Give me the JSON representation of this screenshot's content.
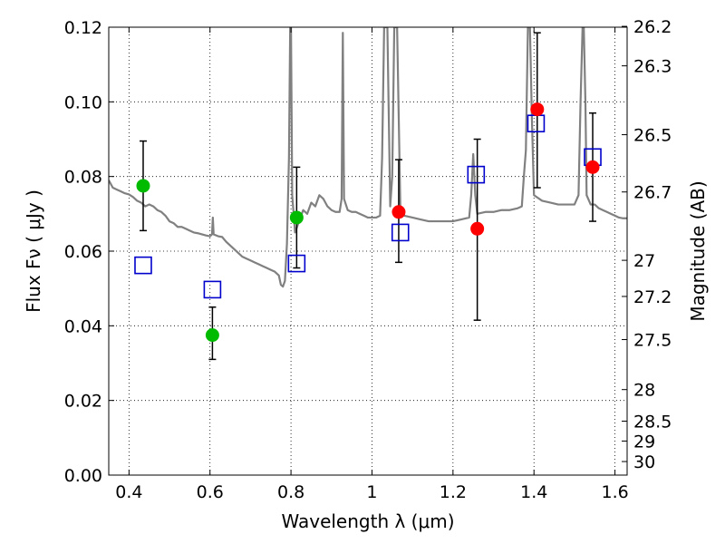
{
  "chart_data": {
    "type": "scatter",
    "xlabel": "Wavelength  λ (μm)",
    "ylabel": "Flux  Fν  ( μJy )",
    "ylabel2": "Magnitude (AB)",
    "xlim": [
      0.35,
      1.63
    ],
    "ylim": [
      0,
      0.12
    ],
    "grid": true,
    "x_ticks": [
      {
        "value": 0.4,
        "label": "0.4"
      },
      {
        "value": 0.6,
        "label": "0.6"
      },
      {
        "value": 0.8,
        "label": "0.8"
      },
      {
        "value": 1.0,
        "label": "1"
      },
      {
        "value": 1.2,
        "label": "1.2"
      },
      {
        "value": 1.4,
        "label": "1.4"
      },
      {
        "value": 1.6,
        "label": "1.6"
      }
    ],
    "y_ticks": [
      {
        "value": 0.0,
        "label": "0.00"
      },
      {
        "value": 0.02,
        "label": "0.02"
      },
      {
        "value": 0.04,
        "label": "0.04"
      },
      {
        "value": 0.06,
        "label": "0.06"
      },
      {
        "value": 0.08,
        "label": "0.08"
      },
      {
        "value": 0.1,
        "label": "0.10"
      },
      {
        "value": 0.12,
        "label": "0.12"
      }
    ],
    "mag_ticks": [
      {
        "value": 26.2,
        "label": "26.2"
      },
      {
        "value": 26.3,
        "label": "26.3"
      },
      {
        "value": 26.5,
        "label": "26.5"
      },
      {
        "value": 26.7,
        "label": "26.7"
      },
      {
        "value": 27.0,
        "label": "27"
      },
      {
        "value": 27.2,
        "label": "27.2"
      },
      {
        "value": 27.5,
        "label": "27.5"
      },
      {
        "value": 28.0,
        "label": "28"
      },
      {
        "value": 28.5,
        "label": "28.5"
      },
      {
        "value": 29.0,
        "label": "29"
      },
      {
        "value": 30.0,
        "label": "30"
      }
    ],
    "observed_green": [
      {
        "x": 0.435,
        "y": 0.0775,
        "yerr_low": 0.0655,
        "yerr_high": 0.0895
      },
      {
        "x": 0.606,
        "y": 0.0375,
        "yerr_low": 0.031,
        "yerr_high": 0.045
      },
      {
        "x": 0.814,
        "y": 0.069,
        "yerr_low": 0.0555,
        "yerr_high": 0.0825
      }
    ],
    "observed_red": [
      {
        "x": 1.066,
        "y": 0.0705,
        "yerr_low": 0.057,
        "yerr_high": 0.0845
      },
      {
        "x": 1.26,
        "y": 0.066,
        "yerr_low": 0.0415,
        "yerr_high": 0.09
      },
      {
        "x": 1.408,
        "y": 0.098,
        "yerr_low": 0.077,
        "yerr_high": 0.1185
      },
      {
        "x": 1.545,
        "y": 0.0825,
        "yerr_low": 0.068,
        "yerr_high": 0.097
      }
    ],
    "model_points": [
      {
        "x": 0.435,
        "y": 0.0562
      },
      {
        "x": 0.606,
        "y": 0.0497
      },
      {
        "x": 0.814,
        "y": 0.0567
      },
      {
        "x": 1.07,
        "y": 0.065
      },
      {
        "x": 1.257,
        "y": 0.0805
      },
      {
        "x": 1.405,
        "y": 0.0942
      },
      {
        "x": 1.545,
        "y": 0.0852
      }
    ],
    "model_spectrum": [
      [
        0.35,
        0.079
      ],
      [
        0.36,
        0.077
      ],
      [
        0.37,
        0.0765
      ],
      [
        0.38,
        0.076
      ],
      [
        0.39,
        0.0755
      ],
      [
        0.4,
        0.0752
      ],
      [
        0.41,
        0.0745
      ],
      [
        0.42,
        0.0735
      ],
      [
        0.43,
        0.073
      ],
      [
        0.44,
        0.072
      ],
      [
        0.45,
        0.0725
      ],
      [
        0.46,
        0.072
      ],
      [
        0.47,
        0.071
      ],
      [
        0.48,
        0.0705
      ],
      [
        0.49,
        0.0695
      ],
      [
        0.5,
        0.068
      ],
      [
        0.51,
        0.0675
      ],
      [
        0.52,
        0.0665
      ],
      [
        0.53,
        0.0665
      ],
      [
        0.54,
        0.066
      ],
      [
        0.55,
        0.0655
      ],
      [
        0.56,
        0.065
      ],
      [
        0.57,
        0.0648
      ],
      [
        0.58,
        0.0645
      ],
      [
        0.59,
        0.0642
      ],
      [
        0.6,
        0.064
      ],
      [
        0.605,
        0.0645
      ],
      [
        0.607,
        0.069
      ],
      [
        0.609,
        0.0645
      ],
      [
        0.62,
        0.064
      ],
      [
        0.63,
        0.0638
      ],
      [
        0.64,
        0.0625
      ],
      [
        0.65,
        0.0615
      ],
      [
        0.66,
        0.0605
      ],
      [
        0.67,
        0.0595
      ],
      [
        0.68,
        0.0585
      ],
      [
        0.69,
        0.058
      ],
      [
        0.7,
        0.0575
      ],
      [
        0.71,
        0.057
      ],
      [
        0.72,
        0.0565
      ],
      [
        0.73,
        0.056
      ],
      [
        0.74,
        0.0555
      ],
      [
        0.75,
        0.055
      ],
      [
        0.76,
        0.0545
      ],
      [
        0.77,
        0.0535
      ],
      [
        0.775,
        0.051
      ],
      [
        0.78,
        0.0505
      ],
      [
        0.785,
        0.052
      ],
      [
        0.79,
        0.062
      ],
      [
        0.795,
        0.085
      ],
      [
        0.798,
        0.12
      ],
      [
        0.8,
        0.12
      ],
      [
        0.803,
        0.075
      ],
      [
        0.81,
        0.065
      ],
      [
        0.82,
        0.068
      ],
      [
        0.83,
        0.071
      ],
      [
        0.84,
        0.07
      ],
      [
        0.85,
        0.073
      ],
      [
        0.86,
        0.072
      ],
      [
        0.87,
        0.075
      ],
      [
        0.88,
        0.074
      ],
      [
        0.89,
        0.072
      ],
      [
        0.9,
        0.071
      ],
      [
        0.91,
        0.0705
      ],
      [
        0.92,
        0.0705
      ],
      [
        0.925,
        0.074
      ],
      [
        0.928,
        0.1185
      ],
      [
        0.931,
        0.074
      ],
      [
        0.94,
        0.071
      ],
      [
        0.95,
        0.0705
      ],
      [
        0.96,
        0.0705
      ],
      [
        0.97,
        0.07
      ],
      [
        0.98,
        0.0695
      ],
      [
        0.99,
        0.069
      ],
      [
        1.0,
        0.069
      ],
      [
        1.01,
        0.069
      ],
      [
        1.02,
        0.0695
      ],
      [
        1.025,
        0.085
      ],
      [
        1.03,
        0.12
      ],
      [
        1.038,
        0.12
      ],
      [
        1.045,
        0.072
      ],
      [
        1.05,
        0.08
      ],
      [
        1.055,
        0.12
      ],
      [
        1.062,
        0.12
      ],
      [
        1.07,
        0.072
      ],
      [
        1.08,
        0.0695
      ],
      [
        1.1,
        0.069
      ],
      [
        1.12,
        0.0685
      ],
      [
        1.14,
        0.068
      ],
      [
        1.16,
        0.068
      ],
      [
        1.18,
        0.068
      ],
      [
        1.2,
        0.068
      ],
      [
        1.22,
        0.0685
      ],
      [
        1.24,
        0.069
      ],
      [
        1.245,
        0.075
      ],
      [
        1.25,
        0.086
      ],
      [
        1.255,
        0.075
      ],
      [
        1.26,
        0.07
      ],
      [
        1.28,
        0.0705
      ],
      [
        1.3,
        0.0705
      ],
      [
        1.32,
        0.071
      ],
      [
        1.34,
        0.071
      ],
      [
        1.36,
        0.0715
      ],
      [
        1.37,
        0.072
      ],
      [
        1.375,
        0.08
      ],
      [
        1.38,
        0.087
      ],
      [
        1.385,
        0.12
      ],
      [
        1.39,
        0.12
      ],
      [
        1.395,
        0.095
      ],
      [
        1.4,
        0.075
      ],
      [
        1.42,
        0.0735
      ],
      [
        1.44,
        0.073
      ],
      [
        1.46,
        0.0725
      ],
      [
        1.48,
        0.0725
      ],
      [
        1.5,
        0.0725
      ],
      [
        1.51,
        0.075
      ],
      [
        1.515,
        0.1
      ],
      [
        1.52,
        0.12
      ],
      [
        1.523,
        0.12
      ],
      [
        1.527,
        0.1
      ],
      [
        1.53,
        0.075
      ],
      [
        1.54,
        0.0725
      ],
      [
        1.55,
        0.0725
      ],
      [
        1.56,
        0.0715
      ],
      [
        1.57,
        0.071
      ],
      [
        1.58,
        0.0705
      ],
      [
        1.59,
        0.07
      ],
      [
        1.6,
        0.0695
      ],
      [
        1.61,
        0.069
      ],
      [
        1.62,
        0.0688
      ],
      [
        1.63,
        0.0688
      ]
    ],
    "colors": {
      "spectrum": "#808080",
      "observed_blue_band": "#00bb00",
      "observed_red_band": "#ff0000",
      "model_points": "#0000cc",
      "error_bars": "#000000",
      "grid": "#000000"
    }
  }
}
